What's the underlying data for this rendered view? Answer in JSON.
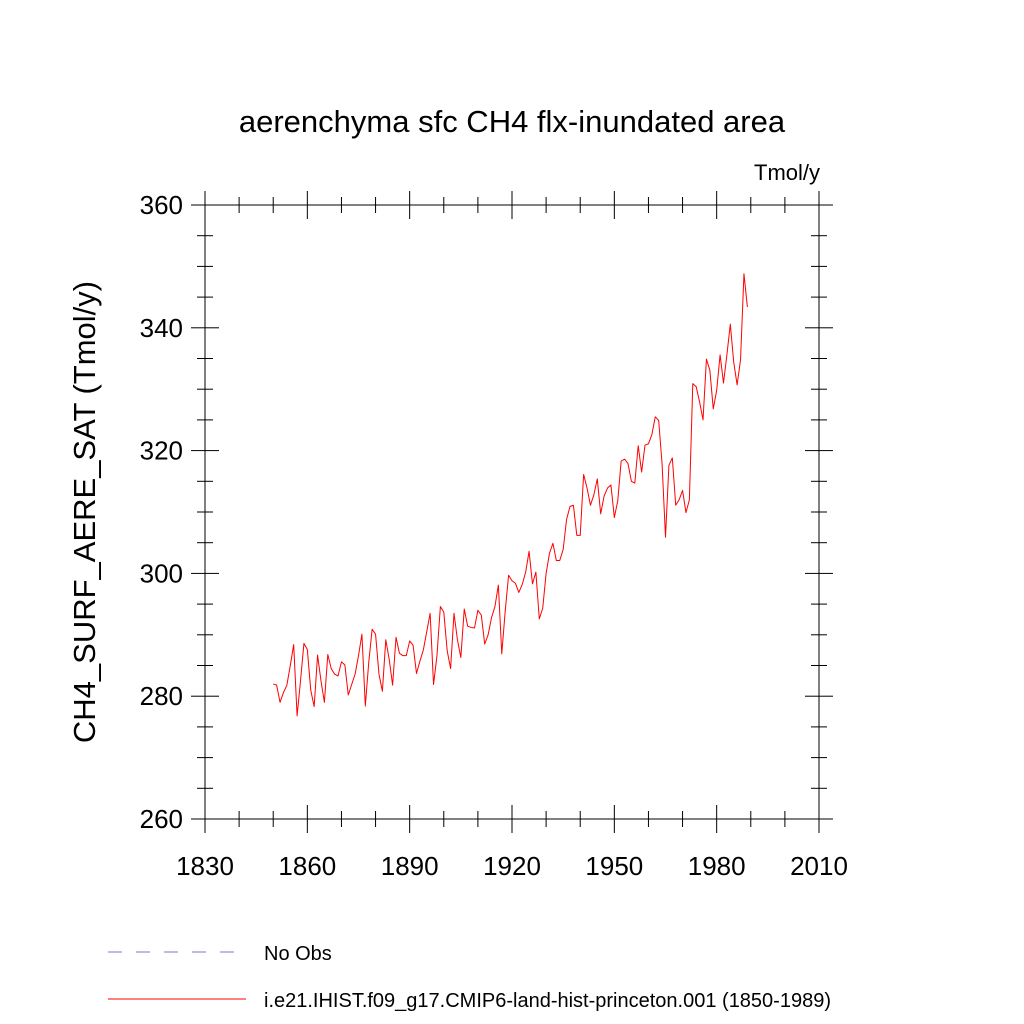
{
  "chart_data": {
    "type": "line",
    "title": "aerenchyma sfc CH4 flx-inundated area",
    "units": "Tmol/y",
    "ylabel": "CH4_SURF_AERE_SAT  (Tmol/y)",
    "xlabel": "",
    "xlim": [
      1830,
      2010
    ],
    "ylim": [
      260,
      360
    ],
    "xticks": [
      1830,
      1860,
      1890,
      1920,
      1950,
      1980,
      2010
    ],
    "yticks": [
      260,
      280,
      300,
      320,
      340,
      360
    ],
    "grid": false,
    "legend_position": "bottom-left",
    "series": [
      {
        "name": "No Obs",
        "color": "#7b74c9",
        "dash": "dashed",
        "x": [],
        "y": []
      },
      {
        "name": "i.e21.IHIST.f09_g17.CMIP6-land-hist-princeton.001 (1850-1989)",
        "color": "#ff0000",
        "dash": "solid",
        "x": [
          1850,
          1851,
          1852,
          1853,
          1854,
          1855,
          1856,
          1857,
          1858,
          1859,
          1860,
          1861,
          1862,
          1863,
          1864,
          1865,
          1866,
          1867,
          1868,
          1869,
          1870,
          1871,
          1872,
          1873,
          1874,
          1875,
          1876,
          1877,
          1878,
          1879,
          1880,
          1881,
          1882,
          1883,
          1884,
          1885,
          1886,
          1887,
          1888,
          1889,
          1890,
          1891,
          1892,
          1893,
          1894,
          1895,
          1896,
          1897,
          1898,
          1899,
          1900,
          1901,
          1902,
          1903,
          1904,
          1905,
          1906,
          1907,
          1908,
          1909,
          1910,
          1911,
          1912,
          1913,
          1914,
          1915,
          1916,
          1917,
          1918,
          1919,
          1920,
          1921,
          1922,
          1923,
          1924,
          1925,
          1926,
          1927,
          1928,
          1929,
          1930,
          1931,
          1932,
          1933,
          1934,
          1935,
          1936,
          1937,
          1938,
          1939,
          1940,
          1941,
          1942,
          1943,
          1944,
          1945,
          1946,
          1947,
          1948,
          1949,
          1950,
          1951,
          1952,
          1953,
          1954,
          1955,
          1956,
          1957,
          1958,
          1959,
          1960,
          1961,
          1962,
          1963,
          1964,
          1965,
          1966,
          1967,
          1968,
          1969,
          1970,
          1971,
          1972,
          1973,
          1974,
          1975,
          1976,
          1977,
          1978,
          1979,
          1980,
          1981,
          1982,
          1983,
          1984,
          1985,
          1986,
          1987,
          1988,
          1989
        ],
        "y": [
          282.0,
          281.8,
          279.0,
          280.6,
          281.8,
          285.0,
          288.4,
          276.8,
          282.5,
          288.6,
          287.6,
          281.0,
          278.3,
          286.7,
          282.5,
          279.0,
          286.8,
          284.5,
          283.6,
          283.3,
          285.6,
          285.1,
          280.2,
          281.9,
          283.6,
          286.6,
          290.1,
          278.4,
          285.5,
          290.9,
          290.1,
          283.6,
          280.8,
          289.2,
          286.0,
          281.8,
          289.6,
          287.0,
          286.6,
          286.6,
          289.0,
          288.3,
          283.7,
          285.7,
          287.5,
          290.5,
          293.5,
          281.9,
          286.6,
          294.6,
          293.7,
          287.4,
          284.5,
          293.5,
          289.2,
          286.3,
          294.2,
          291.4,
          291.2,
          291.1,
          294.0,
          293.2,
          288.5,
          290.0,
          292.8,
          294.6,
          298.1,
          286.9,
          293.8,
          299.7,
          298.8,
          298.4,
          296.9,
          298.2,
          300.2,
          303.6,
          298.3,
          300.2,
          292.6,
          294.3,
          300.0,
          303.3,
          304.9,
          302.1,
          302.1,
          303.9,
          308.8,
          310.9,
          311.1,
          306.2,
          306.2,
          316.1,
          313.9,
          311.1,
          312.8,
          315.4,
          309.7,
          312.6,
          313.9,
          314.4,
          309.1,
          311.8,
          318.3,
          318.6,
          317.9,
          315.0,
          314.7,
          320.8,
          316.5,
          320.9,
          321.1,
          322.6,
          325.5,
          324.9,
          317.8,
          305.9,
          317.6,
          318.8,
          311.1,
          312.0,
          313.5,
          309.9,
          312.0,
          330.9,
          330.4,
          327.9,
          325.0,
          334.9,
          333.1,
          326.8,
          329.8,
          335.6,
          331.0,
          335.6,
          340.6,
          334.4,
          330.7,
          334.8,
          348.8,
          343.4
        ]
      }
    ]
  }
}
